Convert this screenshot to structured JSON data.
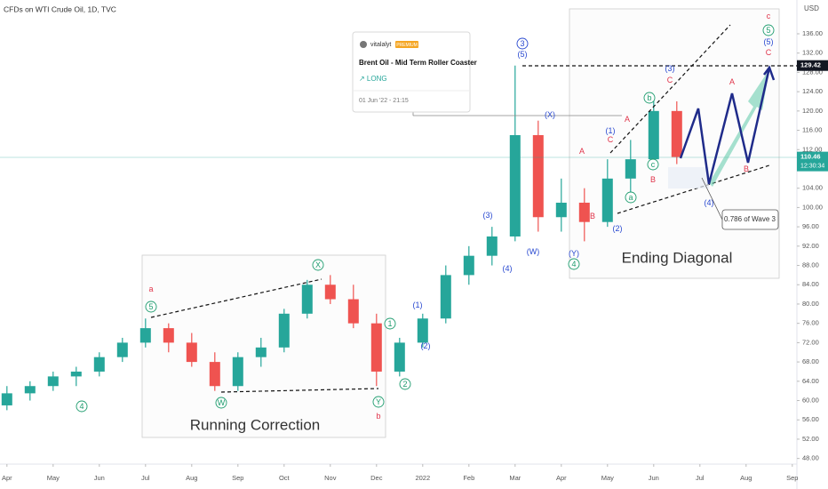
{
  "header": {
    "symbol": "CFDs on WTI Crude Oil, 1D, TVC",
    "currency": "USD",
    "last_price": 110.46,
    "countdown": "12:30:34",
    "marked_high": 129.42
  },
  "idea_card": {
    "author": "vitalalyt",
    "badge": "PREMIUM",
    "title": "Brent Oil - Mid Term Roller Coaster",
    "direction": "↗ LONG",
    "date": "01 Jun '22 - 21:15"
  },
  "chart_data": {
    "type": "candlestick",
    "up_color": "#26a69a",
    "down_color": "#ef5350",
    "x": [
      0,
      0.5,
      1,
      1.5,
      2,
      2.5,
      3,
      3.5,
      4,
      4.5,
      5,
      5.5,
      6,
      6.5,
      7,
      7.5,
      8,
      8.5,
      9,
      9.5,
      10,
      10.5,
      11,
      11.5,
      12,
      12.5,
      13,
      13.5,
      14,
      14.5
    ],
    "open": [
      59,
      61.5,
      63,
      65,
      66,
      69,
      72,
      75,
      72,
      68,
      63,
      69,
      71,
      78,
      84,
      81,
      76,
      66,
      72,
      77,
      86,
      90,
      94,
      115,
      98,
      101,
      97,
      106,
      110,
      120
    ],
    "high": [
      63,
      64,
      66,
      67,
      70,
      73,
      77,
      76,
      74,
      70,
      70,
      73,
      79,
      85,
      86,
      84,
      78,
      73,
      78,
      88,
      92,
      96,
      129.42,
      118,
      106,
      104,
      110,
      114,
      123,
      122
    ],
    "low": [
      58,
      60,
      62,
      63,
      65,
      68,
      71,
      70,
      67,
      62,
      62,
      67,
      70,
      77,
      80,
      75,
      63,
      65,
      71,
      76,
      84,
      88,
      93,
      95,
      95,
      93,
      96,
      103,
      108,
      109
    ],
    "close": [
      61.5,
      63,
      65,
      66,
      69,
      72,
      75,
      72,
      68,
      63,
      69,
      71,
      78,
      84,
      81,
      76,
      66,
      72,
      77,
      86,
      90,
      94,
      115,
      98,
      101,
      97,
      106,
      110,
      120,
      110.46
    ],
    "xlim": [
      -0.15,
      17.1
    ],
    "xticks": [
      {
        "value": 0,
        "label": "Apr"
      },
      {
        "value": 1,
        "label": "May"
      },
      {
        "value": 2,
        "label": "Jun"
      },
      {
        "value": 3,
        "label": "Jul"
      },
      {
        "value": 4,
        "label": "Aug"
      },
      {
        "value": 5,
        "label": "Sep"
      },
      {
        "value": 6,
        "label": "Oct"
      },
      {
        "value": 7,
        "label": "Nov"
      },
      {
        "value": 8,
        "label": "Dec"
      },
      {
        "value": 9,
        "label": "2022"
      },
      {
        "value": 10,
        "label": "Feb"
      },
      {
        "value": 11,
        "label": "Mar"
      },
      {
        "value": 12,
        "label": "Apr"
      },
      {
        "value": 13,
        "label": "May"
      },
      {
        "value": 14,
        "label": "Jun"
      },
      {
        "value": 15,
        "label": "Jul"
      },
      {
        "value": 16,
        "label": "Aug"
      },
      {
        "value": 17,
        "label": "Sep"
      }
    ],
    "ylim": [
      47.2,
      143
    ],
    "yticks": [
      {
        "value": 48,
        "label": "48.00"
      },
      {
        "value": 52,
        "label": "52.00"
      },
      {
        "value": 56,
        "label": "56.00"
      },
      {
        "value": 60,
        "label": "60.00"
      },
      {
        "value": 64,
        "label": "64.00"
      },
      {
        "value": 68,
        "label": "68.00"
      },
      {
        "value": 72,
        "label": "72.00"
      },
      {
        "value": 76,
        "label": "76.00"
      },
      {
        "value": 80,
        "label": "80.00"
      },
      {
        "value": 84,
        "label": "84.00"
      },
      {
        "value": 88,
        "label": "88.00"
      },
      {
        "value": 92,
        "label": "92.00"
      },
      {
        "value": 96,
        "label": "96.00"
      },
      {
        "value": 100,
        "label": "100.00"
      },
      {
        "value": 104,
        "label": "104.00"
      },
      {
        "value": 108,
        "label": "108.00"
      },
      {
        "value": 112,
        "label": "112.00"
      },
      {
        "value": 116,
        "label": "116.00"
      },
      {
        "value": 120,
        "label": "120.00"
      },
      {
        "value": 124,
        "label": "124.00"
      },
      {
        "value": 128,
        "label": "128.00"
      },
      {
        "value": 132,
        "label": "132.00"
      },
      {
        "value": 136,
        "label": "136.00"
      }
    ],
    "grid": false,
    "box_labels": [
      "Running Correction",
      "Ending Diagonal"
    ],
    "callout": "0.786 of Wave 3",
    "annotations": [
      {
        "text": "4",
        "color": "#1e9c6e",
        "circled": true
      },
      {
        "text": "5",
        "color": "#1e9c6e",
        "circled": true
      },
      {
        "text": "a",
        "color": "#e0344a",
        "circled": false
      },
      {
        "text": "W",
        "color": "#1e9c6e",
        "circled": true
      },
      {
        "text": "X",
        "color": "#1e9c6e",
        "circled": true
      },
      {
        "text": "Y",
        "color": "#1e9c6e",
        "circled": true
      },
      {
        "text": "b",
        "color": "#e0344a",
        "circled": false
      },
      {
        "text": "1",
        "color": "#1e9c6e",
        "circled": true
      },
      {
        "text": "2",
        "color": "#1e9c6e",
        "circled": true
      },
      {
        "text": "(1)",
        "color": "#2848d0",
        "circled": false
      },
      {
        "text": "(2)",
        "color": "#2848d0",
        "circled": false
      },
      {
        "text": "(3)",
        "color": "#2848d0",
        "circled": false
      },
      {
        "text": "(4)",
        "color": "#2848d0",
        "circled": false
      },
      {
        "text": "3",
        "color": "#2848d0",
        "circled": true
      },
      {
        "text": "(5)",
        "color": "#2848d0",
        "circled": false
      },
      {
        "text": "(W)",
        "color": "#2848d0",
        "circled": false
      },
      {
        "text": "(X)",
        "color": "#2848d0",
        "circled": false
      },
      {
        "text": "A",
        "color": "#e0344a",
        "circled": false
      },
      {
        "text": "B",
        "color": "#e0344a",
        "circled": false
      },
      {
        "text": "(Y)",
        "color": "#2848d0",
        "circled": false
      },
      {
        "text": "4",
        "color": "#1e9c6e",
        "circled": true
      },
      {
        "text": "(1)",
        "color": "#2848d0",
        "circled": false
      },
      {
        "text": "C",
        "color": "#e0344a",
        "circled": false
      },
      {
        "text": "A",
        "color": "#e0344a",
        "circled": false
      },
      {
        "text": "(2)",
        "color": "#2848d0",
        "circled": false
      },
      {
        "text": "a",
        "color": "#1e9c6e",
        "circled": true
      },
      {
        "text": "b",
        "color": "#1e9c6e",
        "circled": true
      },
      {
        "text": "c",
        "color": "#1e9c6e",
        "circled": true
      },
      {
        "text": "B",
        "color": "#e0344a",
        "circled": false
      },
      {
        "text": "(3)",
        "color": "#2848d0",
        "circled": false
      },
      {
        "text": "C",
        "color": "#e0344a",
        "circled": false
      },
      {
        "text": "(4)",
        "color": "#2848d0",
        "circled": false
      },
      {
        "text": "A",
        "color": "#e0344a",
        "circled": false
      },
      {
        "text": "B",
        "color": "#e0344a",
        "circled": false
      },
      {
        "text": "c",
        "color": "#e0344a",
        "circled": false
      },
      {
        "text": "5",
        "color": "#1e9c6e",
        "circled": true
      },
      {
        "text": "(5)",
        "color": "#2848d0",
        "circled": false
      },
      {
        "text": "C",
        "color": "#e0344a",
        "circled": false
      }
    ]
  }
}
